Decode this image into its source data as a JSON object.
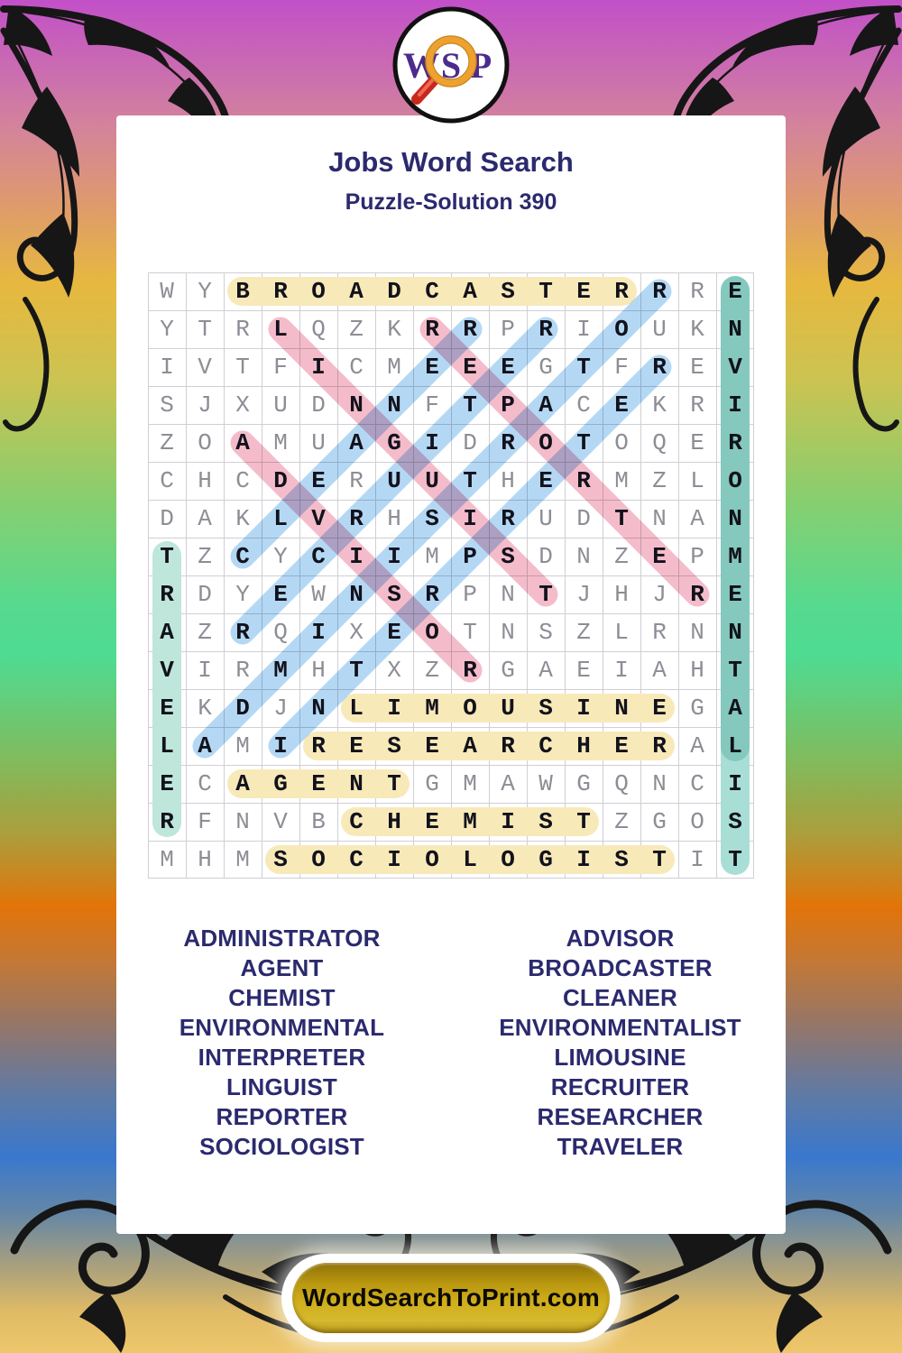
{
  "header": {
    "title": "Jobs Word Search",
    "subtitle": "Puzzle-Solution 390"
  },
  "logo": {
    "letters": [
      "W",
      "S",
      "P"
    ],
    "icon": "magnifier-icon"
  },
  "grid": {
    "size": 16,
    "rows": [
      "WYBROADCASTERRRE",
      "YTRLQZKRRPRIOUKN",
      "IVTFICMEEEGTFREV",
      "SJXUDNNFTPACEKRI",
      "ZOAMUAGIDROTOQER",
      "CHCDERUUTHERMZLO",
      "DAKLVRHSIRUDTNAN",
      "TZCYCIIMPSDNZEPM",
      "RDYEWNSRPNTJHJRE",
      "AZRQIXEOTNSZLRNN",
      "VIRMHTXZRGAEIAHT",
      "EKDJNLIMOUSINEGA",
      "LAMIRESEARCHERAL",
      "ECAGENTGMAWGQNCI",
      "RFNVBCHEMISTZGOS",
      "MHMSOCIOLOGISTIT"
    ]
  },
  "placements": [
    {
      "word": "BROADCASTER",
      "row": 1,
      "col": 3,
      "dr": 0,
      "dc": 1,
      "style": "yellow"
    },
    {
      "word": "LIMOUSINE",
      "row": 12,
      "col": 6,
      "dr": 0,
      "dc": 1,
      "style": "yellow"
    },
    {
      "word": "RESEARCHER",
      "row": 13,
      "col": 5,
      "dr": 0,
      "dc": 1,
      "style": "yellow"
    },
    {
      "word": "AGENT",
      "row": 14,
      "col": 3,
      "dr": 0,
      "dc": 1,
      "style": "yellow"
    },
    {
      "word": "CHEMIST",
      "row": 15,
      "col": 6,
      "dr": 0,
      "dc": 1,
      "style": "yellow"
    },
    {
      "word": "SOCIOLOGIST",
      "row": 16,
      "col": 4,
      "dr": 0,
      "dc": 1,
      "style": "yellow"
    },
    {
      "word": "ENVIRONMENTALIST",
      "row": 1,
      "col": 16,
      "dr": 1,
      "dc": 0,
      "style": "teal"
    },
    {
      "word": "ENVIRONMENTAL",
      "row": 1,
      "col": 16,
      "dr": 1,
      "dc": 0,
      "style": "teal_overlay"
    },
    {
      "word": "TRAVELER",
      "row": 8,
      "col": 1,
      "dr": 1,
      "dc": 0,
      "style": "teal_light"
    },
    {
      "word": "LINGUIST",
      "row": 2,
      "col": 4,
      "dr": 1,
      "dc": 1,
      "style": "pink"
    },
    {
      "word": "REPORTER",
      "row": 2,
      "col": 8,
      "dr": 1,
      "dc": 1,
      "style": "pink"
    },
    {
      "word": "ADVISOR",
      "row": 5,
      "col": 3,
      "dr": 1,
      "dc": 1,
      "style": "pink"
    },
    {
      "word": "ADMINISTRATOR",
      "row": 13,
      "col": 2,
      "dr": -1,
      "dc": 1,
      "style": "blue"
    },
    {
      "word": "INTERPRETER",
      "row": 13,
      "col": 4,
      "dr": -1,
      "dc": 1,
      "style": "blue"
    },
    {
      "word": "CLEANER",
      "row": 8,
      "col": 3,
      "dr": -1,
      "dc": 1,
      "style": "blue"
    },
    {
      "word": "RECRUITER",
      "row": 10,
      "col": 3,
      "dr": -1,
      "dc": 1,
      "style": "blue"
    }
  ],
  "word_list": {
    "left": [
      "ADMINISTRATOR",
      "AGENT",
      "CHEMIST",
      "ENVIRONMENTAL",
      "INTERPRETER",
      "LINGUIST",
      "REPORTER",
      "SOCIOLOGIST"
    ],
    "right": [
      "ADVISOR",
      "BROADCASTER",
      "CLEANER",
      "ENVIRONMENTALIST",
      "LIMOUSINE",
      "RECRUITER",
      "RESEARCHER",
      "TRAVELER"
    ]
  },
  "footer": {
    "site": "WordSearchToPrint.com"
  },
  "colors": {
    "yellow": "#f8e9b9",
    "teal": "#a9ded7",
    "teal_light": "#bfe6da",
    "teal_overlay": "#c9e6e1",
    "pink": "#f4bcca",
    "blue": "#b4d8f4",
    "navy": "#2b2a6e",
    "letter_gray": "#8d8d95",
    "letter_dark": "#12121c"
  }
}
